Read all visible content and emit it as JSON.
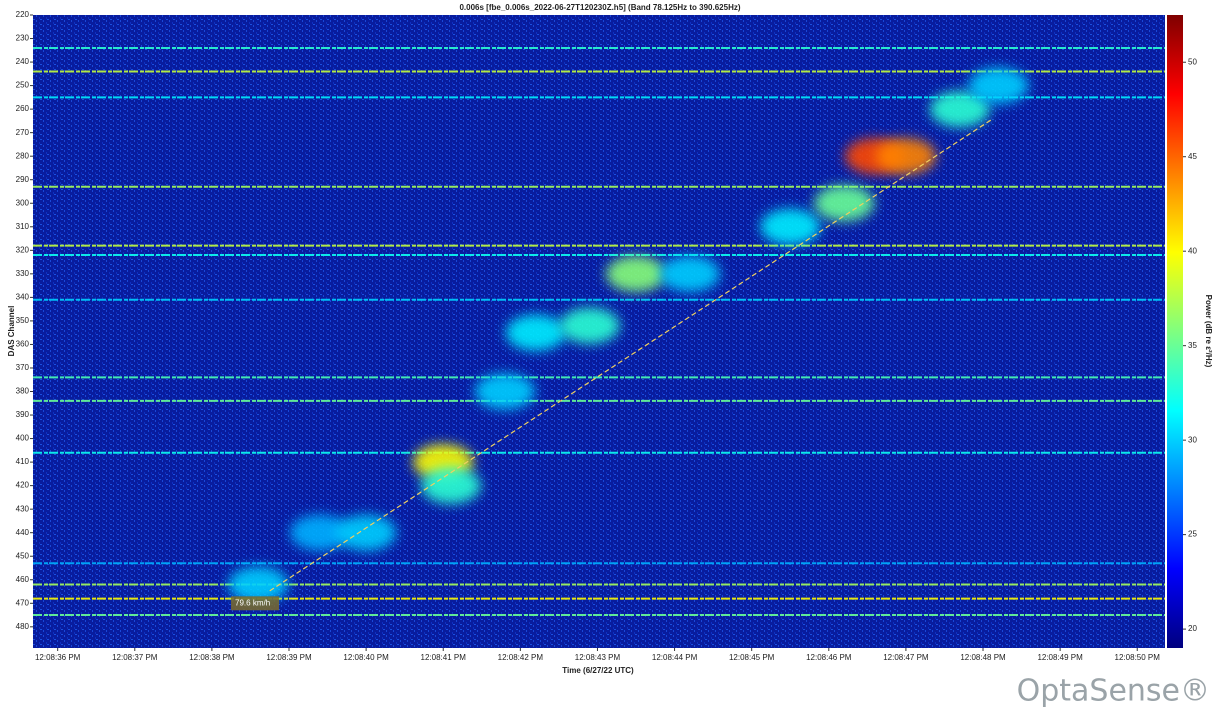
{
  "chart_data": {
    "type": "heatmap",
    "title": "0.006s [fbe_0.006s_2022-06-27T120230Z.h5] (Band 78.125Hz to 390.625Hz)",
    "x_label": "Time (6/27/22 UTC)",
    "y_label": "DAS Channel",
    "colorbar_label": "Power (dB re ε²/Hz)",
    "brand": "OptaSense®",
    "xlim": [
      35.68,
      50.36
    ],
    "xticks": [
      {
        "value": 36,
        "label": "12:08:36 PM"
      },
      {
        "value": 37,
        "label": "12:08:37 PM"
      },
      {
        "value": 38,
        "label": "12:08:38 PM"
      },
      {
        "value": 39,
        "label": "12:08:39 PM"
      },
      {
        "value": 40,
        "label": "12:08:40 PM"
      },
      {
        "value": 41,
        "label": "12:08:41 PM"
      },
      {
        "value": 42,
        "label": "12:08:42 PM"
      },
      {
        "value": 43,
        "label": "12:08:43 PM"
      },
      {
        "value": 44,
        "label": "12:08:44 PM"
      },
      {
        "value": 45,
        "label": "12:08:45 PM"
      },
      {
        "value": 46,
        "label": "12:08:46 PM"
      },
      {
        "value": 47,
        "label": "12:08:47 PM"
      },
      {
        "value": 48,
        "label": "12:08:48 PM"
      },
      {
        "value": 49,
        "label": "12:08:49 PM"
      },
      {
        "value": 50,
        "label": "12:08:50 PM"
      }
    ],
    "ylim": [
      220,
      489
    ],
    "y_inverted": true,
    "yticks": [
      220,
      230,
      240,
      250,
      260,
      270,
      280,
      290,
      300,
      310,
      320,
      330,
      340,
      350,
      360,
      370,
      380,
      390,
      400,
      410,
      420,
      430,
      440,
      450,
      460,
      470,
      480
    ],
    "clim": [
      19,
      52.5
    ],
    "cticks": [
      20,
      25,
      30,
      35,
      40,
      45,
      50
    ],
    "colormap": "jet",
    "stripes": [
      {
        "channel": 234,
        "power": 33
      },
      {
        "channel": 244,
        "power": 38
      },
      {
        "channel": 255,
        "power": 31
      },
      {
        "channel": 293,
        "power": 37
      },
      {
        "channel": 318,
        "power": 38
      },
      {
        "channel": 322,
        "power": 32
      },
      {
        "channel": 341,
        "power": 30
      },
      {
        "channel": 374,
        "power": 34
      },
      {
        "channel": 384,
        "power": 35
      },
      {
        "channel": 406,
        "power": 32
      },
      {
        "channel": 453,
        "power": 29
      },
      {
        "channel": 462,
        "power": 37
      },
      {
        "channel": 468,
        "power": 40
      },
      {
        "channel": 475,
        "power": 35
      }
    ],
    "hotspots": [
      {
        "time": 38.6,
        "channel": 462,
        "power": 30
      },
      {
        "time": 39.4,
        "channel": 440,
        "power": 29
      },
      {
        "time": 40.0,
        "channel": 440,
        "power": 30
      },
      {
        "time": 41.0,
        "channel": 410,
        "power": 40
      },
      {
        "time": 41.1,
        "channel": 420,
        "power": 33
      },
      {
        "time": 41.8,
        "channel": 380,
        "power": 30
      },
      {
        "time": 42.2,
        "channel": 355,
        "power": 31
      },
      {
        "time": 42.9,
        "channel": 352,
        "power": 33
      },
      {
        "time": 43.5,
        "channel": 330,
        "power": 36
      },
      {
        "time": 44.2,
        "channel": 330,
        "power": 30
      },
      {
        "time": 45.5,
        "channel": 310,
        "power": 31
      },
      {
        "time": 46.2,
        "channel": 300,
        "power": 35
      },
      {
        "time": 46.6,
        "channel": 280,
        "power": 46
      },
      {
        "time": 47.0,
        "channel": 280,
        "power": 44
      },
      {
        "time": 47.7,
        "channel": 260,
        "power": 33
      },
      {
        "time": 48.2,
        "channel": 250,
        "power": 30
      }
    ],
    "track": {
      "x": [
        38.75,
        48.1
      ],
      "y": [
        464.7,
        264.7
      ],
      "label": "79.6 km/h",
      "label_x": 38.3,
      "label_y": 470
    }
  }
}
